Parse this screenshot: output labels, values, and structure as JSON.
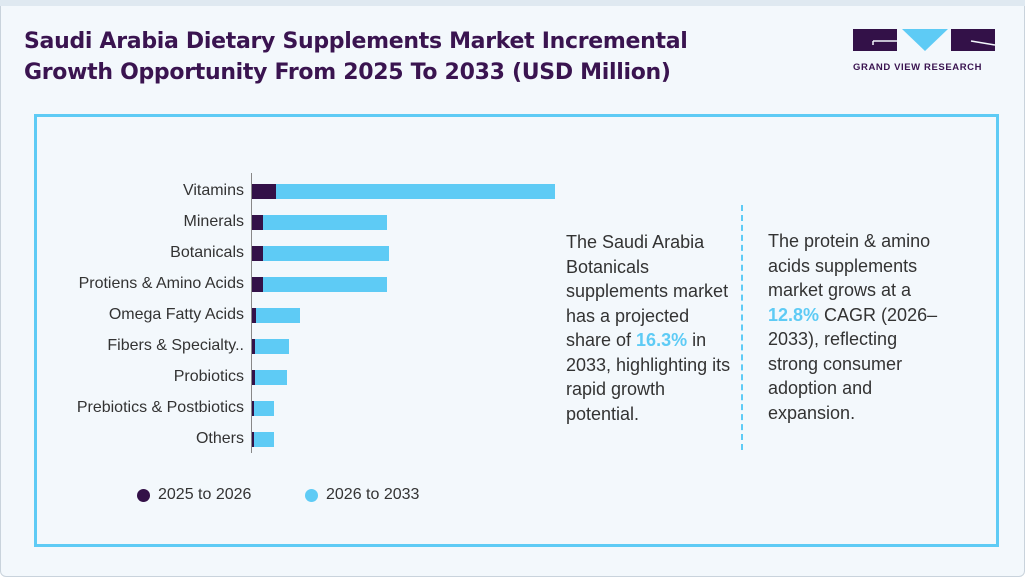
{
  "title_line1": "Saudi Arabia Dietary Supplements Market Incremental",
  "title_line2": "Growth Opportunity From 2025 To 2033 (USD Million)",
  "logo": {
    "text": "GRAND VIEW RESEARCH"
  },
  "colors": {
    "series1": "#331148",
    "series2": "#5ecbf5",
    "title": "#3a1450"
  },
  "chart_data": {
    "type": "bar",
    "orientation": "horizontal",
    "stacked": true,
    "categories": [
      "Vitamins",
      "Minerals",
      "Botanicals",
      "Protiens & Amino Acids",
      "Omega Fatty Acids",
      "Fibers & Specialty..",
      "Probiotics",
      "Prebiotics & Postbiotics",
      "Others"
    ],
    "series": [
      {
        "name": "2025 to 2026",
        "values": [
          24,
          11,
          11,
          11,
          4,
          3,
          3,
          2,
          2
        ]
      },
      {
        "name": "2026 to 2033",
        "values": [
          279,
          124,
          126,
          124,
          44,
          34,
          32,
          20,
          20
        ]
      }
    ],
    "legend": "bottom",
    "grid": false,
    "value_axis_shown": false
  },
  "note1": {
    "t1": "The Saudi Arabia Botanicals supplements market has a projected share of ",
    "hl": "16.3%",
    "t2": " in 2033, highlighting its rapid growth potential."
  },
  "note2": {
    "t1": "The protein & amino acids supplements market grows at a ",
    "hl": "12.8%",
    "t2": " CAGR (2026–2033), reflecting strong consumer adoption and expansion."
  }
}
